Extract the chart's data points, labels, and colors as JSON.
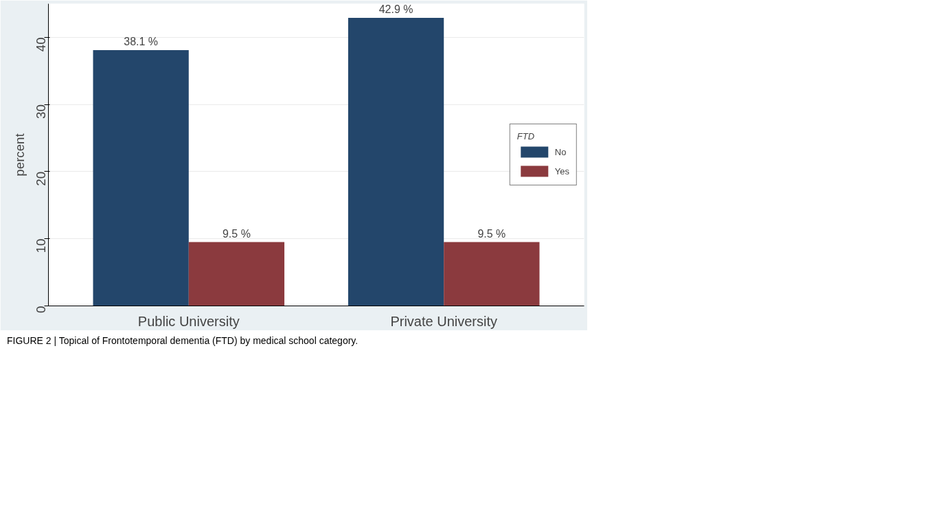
{
  "chart_data": {
    "type": "bar",
    "ylabel": "percent",
    "categories": [
      "Public University",
      "Private University"
    ],
    "series": [
      {
        "name": "No",
        "color": "#23466b",
        "values": [
          38.1,
          42.9
        ],
        "value_labels": [
          "38.1 %",
          "42.9 %"
        ]
      },
      {
        "name": "Yes",
        "color": "#8b3a3e",
        "values": [
          9.5,
          9.5
        ],
        "value_labels": [
          "9.5 %",
          "9.5 %"
        ]
      }
    ],
    "ylim": [
      0,
      45
    ],
    "yticks": [
      0,
      10,
      20,
      30,
      40
    ],
    "grid": "y",
    "legend": "right",
    "legend_title": "FTD",
    "annotations": [
      "FIGURE 2 | Topical of Frontotemporal dementia (FTD) by medical school category."
    ]
  }
}
